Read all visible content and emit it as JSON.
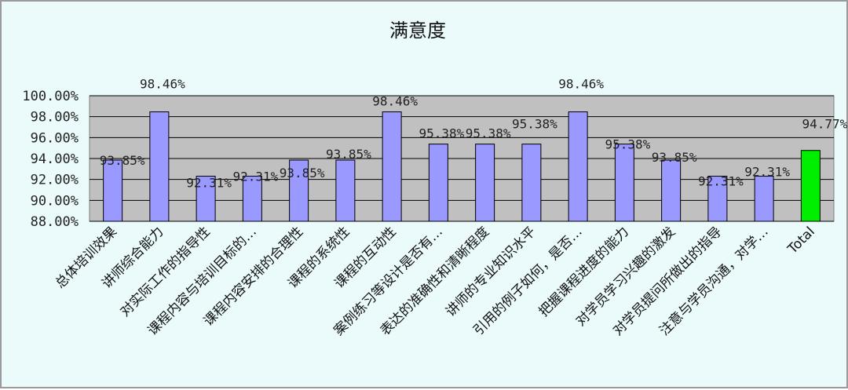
{
  "chart_data": {
    "type": "bar",
    "title": "满意度",
    "ylim": [
      88,
      100
    ],
    "ytick_step": 2,
    "yticks": [
      "100.00%",
      "98.00%",
      "96.00%",
      "94.00%",
      "92.00%",
      "90.00%",
      "88.00%"
    ],
    "grid": true,
    "legend": "none",
    "categories": [
      "总体培训效果",
      "讲师综合能力",
      "对实际工作的指导性",
      "课程内容与培训目标的…",
      "课程内容安排的合理性",
      "课程的系统性",
      "课程的互动性",
      "案例练习等设计是否有…",
      "表达的准确性和清晰程度",
      "讲师的专业知识水平",
      "引用的例子如何，是否…",
      "把握课程进度的能力",
      "对学员学习兴趣的激发",
      "对学员提问所做出的指导",
      "注意与学员沟通，对学…",
      "Total"
    ],
    "values": [
      93.85,
      98.46,
      92.31,
      92.31,
      93.85,
      93.85,
      98.46,
      95.38,
      95.38,
      95.38,
      98.46,
      95.38,
      93.85,
      92.31,
      92.31,
      94.77
    ],
    "data_labels": [
      "93.85%",
      "98.46%",
      "92.31%",
      "92.31%",
      "93.85%",
      "93.85%",
      "98.46%",
      "95.38%",
      "95.38%",
      "95.38%",
      "98.46%",
      "95.38%",
      "93.85%",
      "92.31%",
      "92.31%",
      "94.77%"
    ],
    "colors": {
      "bar": "#9999ff",
      "total_bar": "#00ee00",
      "plot_bg": "#c0c0c0",
      "grid": "#000000"
    }
  }
}
